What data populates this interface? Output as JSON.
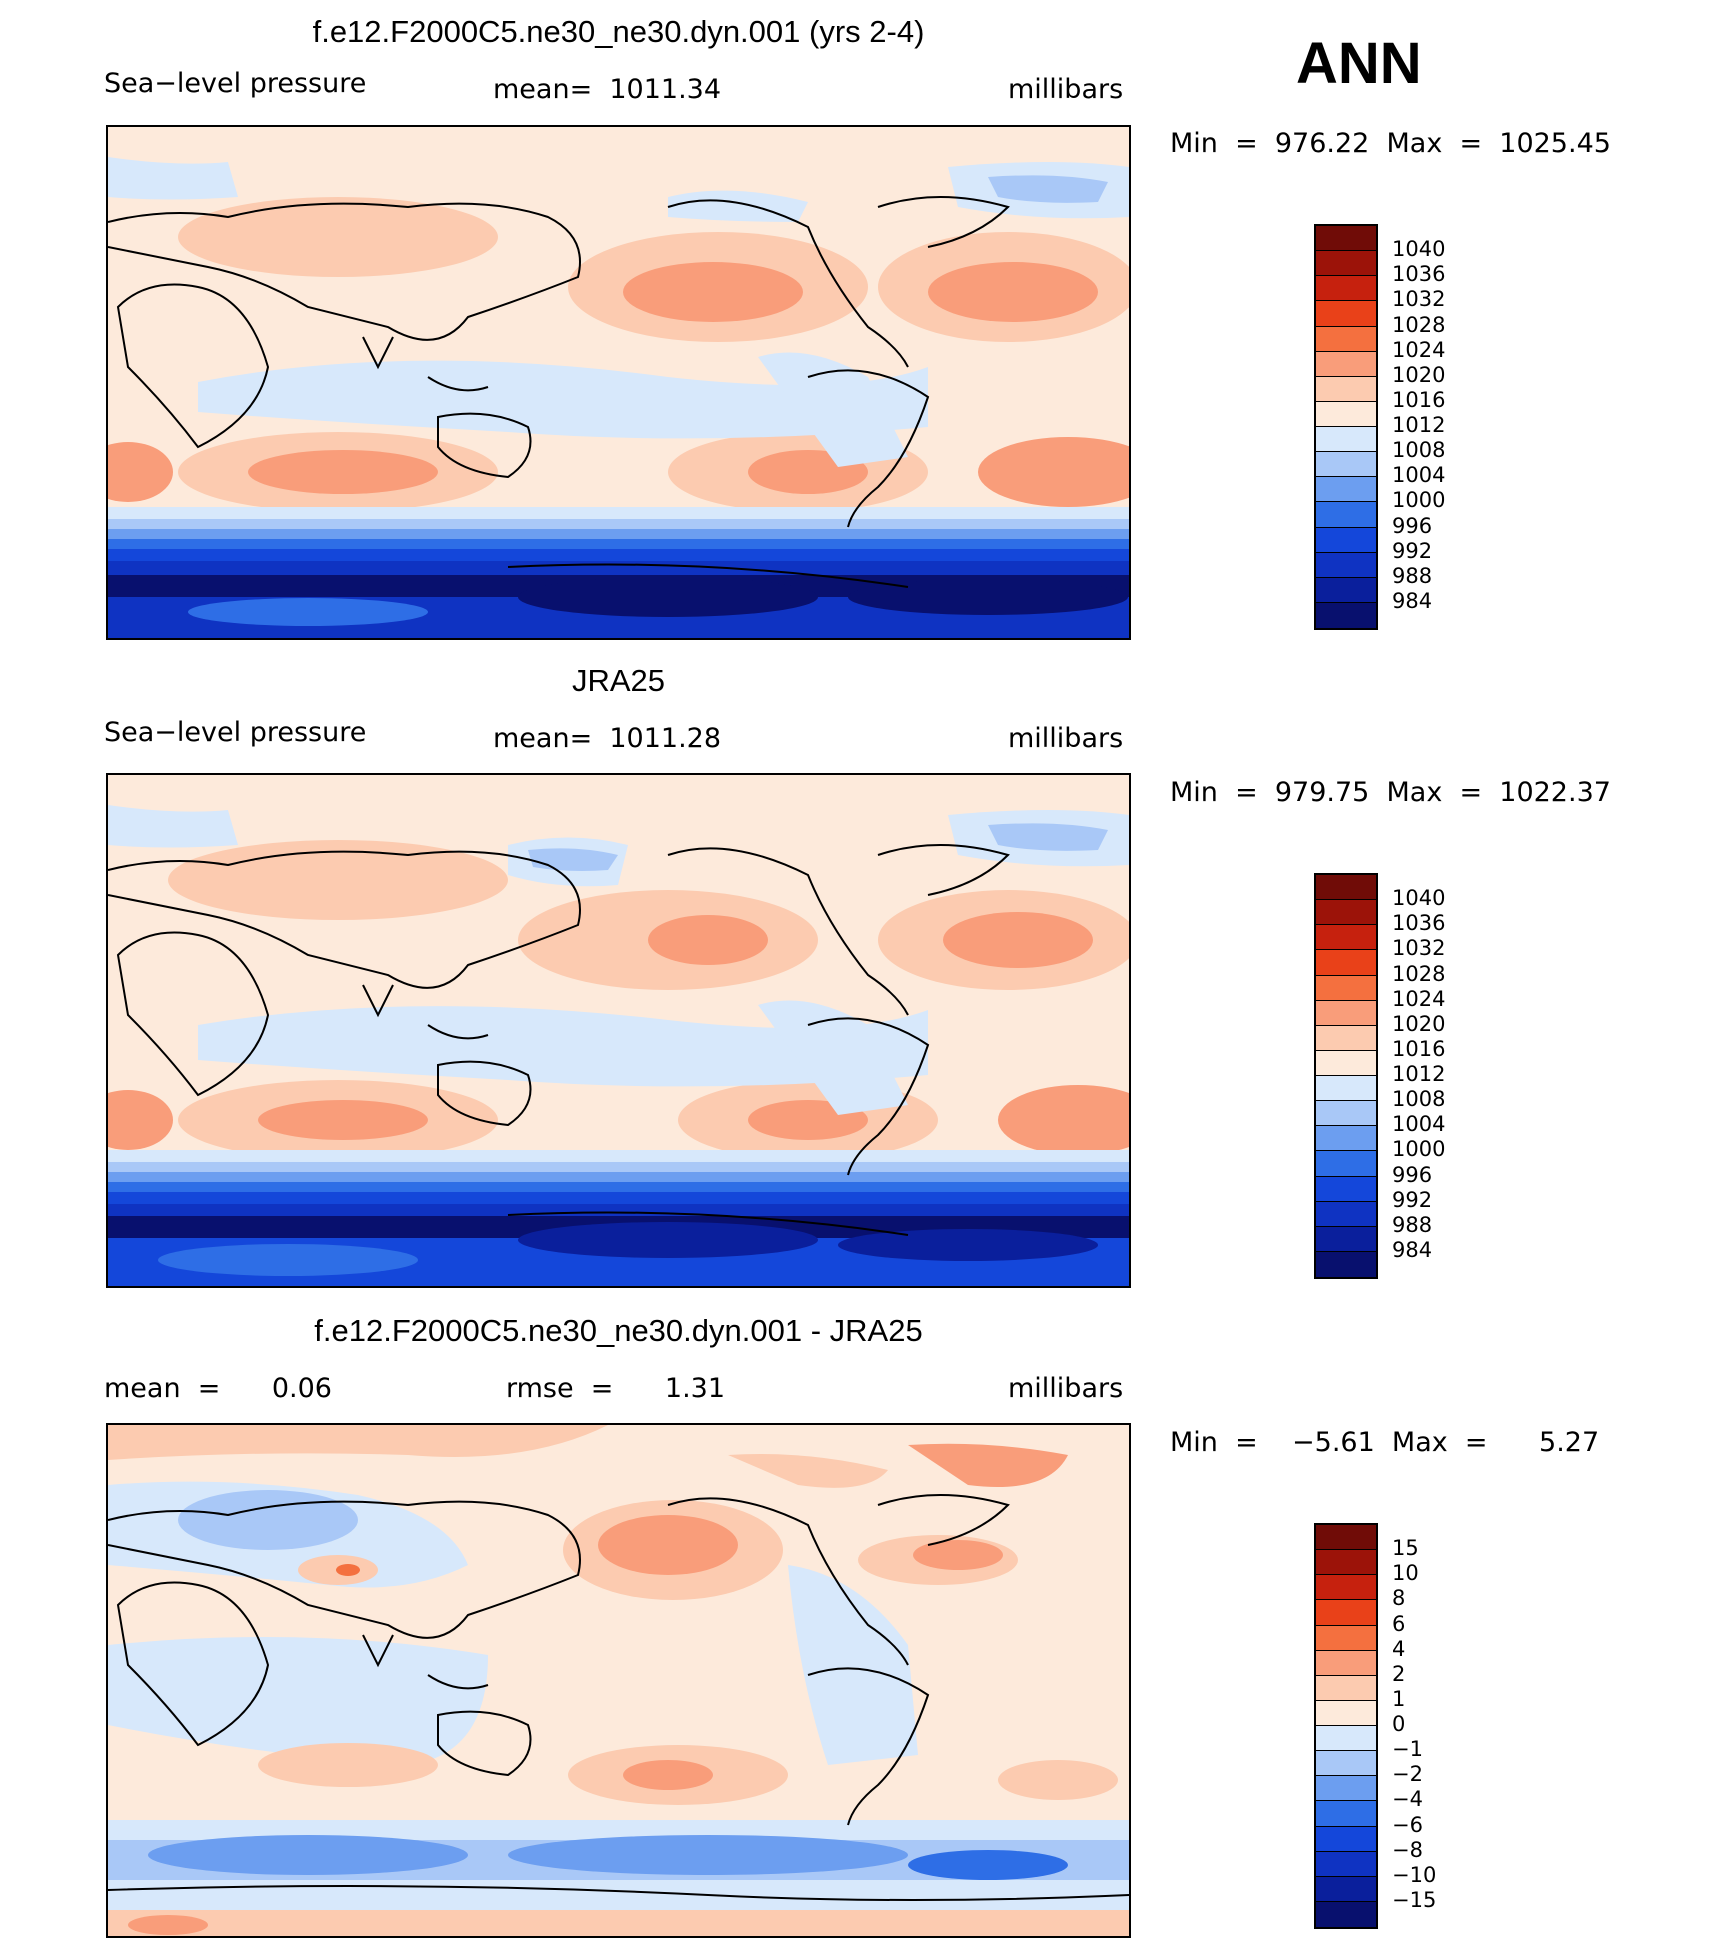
{
  "season": "ANN",
  "colors": {
    "abs_scale": [
      "#08106e",
      "#0a1f9c",
      "#0f33c2",
      "#1447da",
      "#2e6ee6",
      "#6c9ef0",
      "#a9c8f7",
      "#d7e8fb",
      "#fdeadb",
      "#fccbb0",
      "#f99d7a",
      "#f4703f",
      "#e94119",
      "#c6210e",
      "#9c1309",
      "#700c07"
    ],
    "ocean_neutral": "#fdeadb"
  },
  "panels": [
    {
      "title": "f.e12.F2000C5.ne30_ne30.dyn.001 (yrs 2-4)",
      "left": "Sea−level pressure",
      "center": "mean=  1011.34",
      "right": "millibars",
      "minmax": "Min  =  976.22  Max  =  1025.45",
      "scale_labels": [
        "1040",
        "1036",
        "1032",
        "1028",
        "1024",
        "1020",
        "1016",
        "1012",
        "1008",
        "1004",
        "1000",
        "996",
        "992",
        "988",
        "984"
      ],
      "kind": "abs"
    },
    {
      "title": "JRA25",
      "left": "Sea−level pressure",
      "center": "mean=  1011.28",
      "right": "millibars",
      "minmax": "Min  =  979.75  Max  =  1022.37",
      "scale_labels": [
        "1040",
        "1036",
        "1032",
        "1028",
        "1024",
        "1020",
        "1016",
        "1012",
        "1008",
        "1004",
        "1000",
        "996",
        "992",
        "988",
        "984"
      ],
      "kind": "abs"
    },
    {
      "title": "f.e12.F2000C5.ne30_ne30.dyn.001 - JRA25",
      "left": "mean  =      0.06",
      "center": "rmse  =      1.31",
      "right": "millibars",
      "minmax": "Min  =    −5.61  Max  =      5.27",
      "scale_labels": [
        "15",
        "10",
        "8",
        "6",
        "4",
        "2",
        "1",
        "0",
        "−1",
        "−2",
        "−4",
        "−6",
        "−8",
        "−10",
        "−15"
      ],
      "kind": "diff"
    }
  ]
}
